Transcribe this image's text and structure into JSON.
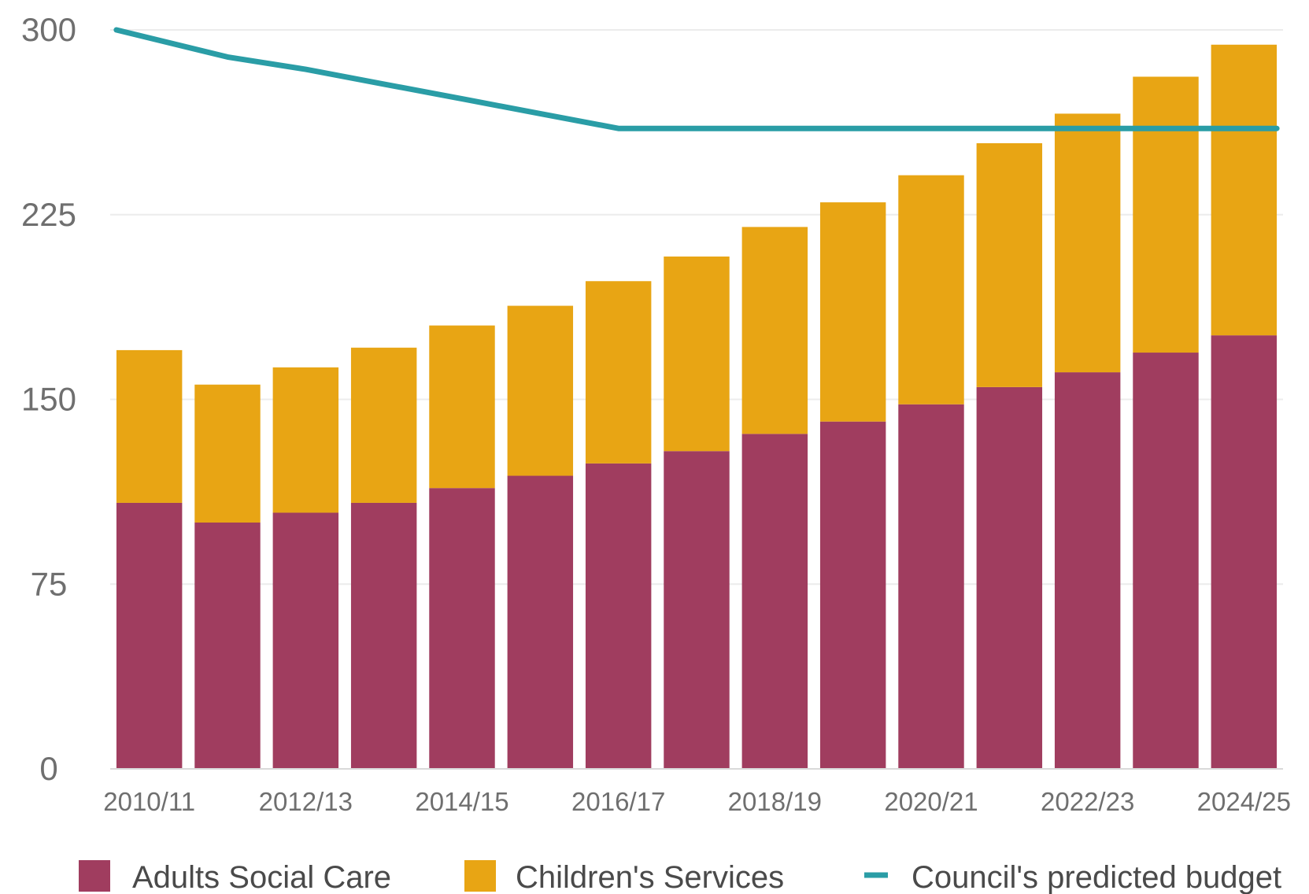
{
  "chart_data": {
    "type": "bar",
    "stacked": true,
    "categories": [
      "2010/11",
      "2011/12",
      "2012/13",
      "2013/14",
      "2014/15",
      "2015/16",
      "2016/17",
      "2017/18",
      "2018/19",
      "2019/20",
      "2020/21",
      "2021/22",
      "2022/23",
      "2023/24",
      "2024/25"
    ],
    "x_tick_labels": [
      "2010/11",
      "",
      "2012/13",
      "",
      "2014/15",
      "",
      "2016/17",
      "",
      "2018/19",
      "",
      "2020/21",
      "",
      "2022/23",
      "",
      "2024/25"
    ],
    "series": [
      {
        "name": "Adults Social Care",
        "kind": "bar",
        "color": "#a03d5f",
        "values": [
          108,
          100,
          104,
          108,
          114,
          119,
          124,
          129,
          136,
          141,
          148,
          155,
          161,
          169,
          176
        ]
      },
      {
        "name": "Children's Services",
        "kind": "bar",
        "color": "#e8a514",
        "values": [
          62,
          56,
          59,
          63,
          66,
          69,
          74,
          79,
          84,
          89,
          93,
          99,
          105,
          112,
          118
        ]
      },
      {
        "name": "Council's predicted budget",
        "kind": "line",
        "color": "#2a9da6",
        "values": [
          300,
          289,
          284,
          278,
          272,
          266,
          260,
          260,
          260,
          260,
          260,
          260,
          260,
          260,
          260
        ]
      }
    ],
    "yticks": [
      0,
      75,
      150,
      225,
      300
    ],
    "ylim": [
      0,
      300
    ],
    "grid": true,
    "legend_position": "bottom"
  }
}
